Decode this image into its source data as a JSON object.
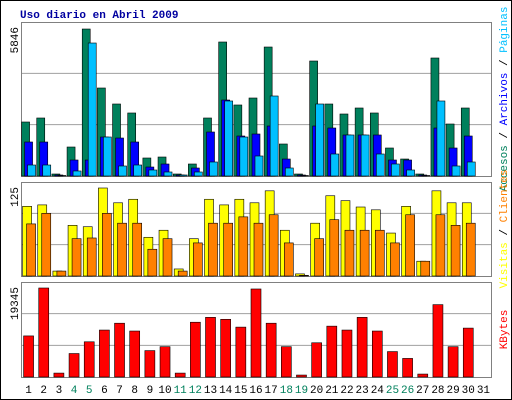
{
  "chart_data": [
    {
      "type": "bar",
      "title": "Uso diario en Abril 2009",
      "legend_separator": " / ",
      "series": [
        {
          "name": "Accesos",
          "color": "#00805c",
          "values": [
            2133,
            2291,
            79,
            1145,
            5806,
            3476,
            2844,
            2489,
            711,
            750,
            79,
            474,
            2291,
            5293,
            2805,
            3081,
            5095,
            1264,
            79,
            4542,
            2844,
            2449,
            2686,
            2489,
            1106,
            671,
            79,
            4661,
            2054,
            2686,
            null
          ]
        },
        {
          "name": "Archivos",
          "color": "#0000ff",
          "values": [
            1343,
            1343,
            40,
            632,
            632,
            1540,
            1500,
            1343,
            355,
            474,
            40,
            316,
            1738,
            3002,
            1580,
            1659,
            1975,
            671,
            40,
            1975,
            1896,
            1620,
            1620,
            1620,
            632,
            632,
            40,
            1896,
            1106,
            1580,
            null
          ]
        },
        {
          "name": "Páginas",
          "color": "#00c0ff",
          "values": [
            434,
            434,
            20,
            198,
            5253,
            1540,
            395,
            434,
            237,
            158,
            40,
            158,
            553,
            2963,
            1540,
            790,
            3160,
            316,
            20,
            2844,
            869,
            1620,
            1620,
            869,
            474,
            237,
            20,
            2963,
            395,
            553,
            null
          ]
        }
      ],
      "ylim": [
        0,
        5846
      ],
      "yticks": [
        5846
      ],
      "grid": true
    },
    {
      "type": "bar",
      "legend_separator": " / ",
      "series": [
        {
          "name": "Visitas",
          "color": "#ffff00",
          "values": [
            99,
            101,
            7,
            72,
            70,
            125,
            104,
            109,
            55,
            65,
            10,
            53,
            109,
            101,
            109,
            104,
            121,
            65,
            3,
            75,
            114,
            107,
            98,
            94,
            61,
            99,
            21,
            121,
            104,
            104,
            null
          ]
        },
        {
          "name": "Clientes",
          "color": "#ff8000",
          "values": [
            74,
            89,
            7,
            53,
            54,
            89,
            75,
            75,
            38,
            53,
            7,
            47,
            75,
            75,
            84,
            75,
            87,
            47,
            1,
            53,
            80,
            65,
            65,
            65,
            47,
            87,
            21,
            87,
            72,
            75,
            null
          ]
        }
      ],
      "ylim": [
        0,
        125
      ],
      "yticks": [
        125
      ],
      "grid": true
    },
    {
      "type": "bar",
      "categories": [
        "1",
        "2",
        "3",
        "4",
        "5",
        "6",
        "7",
        "8",
        "9",
        "10",
        "11",
        "12",
        "13",
        "14",
        "15",
        "16",
        "17",
        "18",
        "19",
        "20",
        "21",
        "22",
        "23",
        "24",
        "25",
        "26",
        "27",
        "28",
        "29",
        "30",
        "31"
      ],
      "category_colors": [
        "#000000",
        "#000000",
        "#000000",
        "#00805c",
        "#00805c",
        "#000000",
        "#000000",
        "#000000",
        "#000000",
        "#000000",
        "#00805c",
        "#00805c",
        "#000000",
        "#000000",
        "#000000",
        "#000000",
        "#000000",
        "#00805c",
        "#00805c",
        "#000000",
        "#000000",
        "#000000",
        "#000000",
        "#000000",
        "#00805c",
        "#00805c",
        "#000000",
        "#000000",
        "#000000",
        "#000000",
        "#000000"
      ],
      "series": [
        {
          "name": "KBytes",
          "color": "#ff0000",
          "values": [
            8929,
            19345,
            850,
            5102,
            7653,
            10204,
            11692,
            9991,
            5740,
            6590,
            850,
            11905,
            12968,
            12542,
            10842,
            19132,
            11692,
            6590,
            425,
            7440,
            11054,
            10204,
            12968,
            9991,
            5527,
            4039,
            638,
            15731,
            6590,
            10629,
            null
          ]
        }
      ],
      "ylim": [
        0,
        19345
      ],
      "yticks": [
        19345
      ],
      "grid": true
    }
  ]
}
